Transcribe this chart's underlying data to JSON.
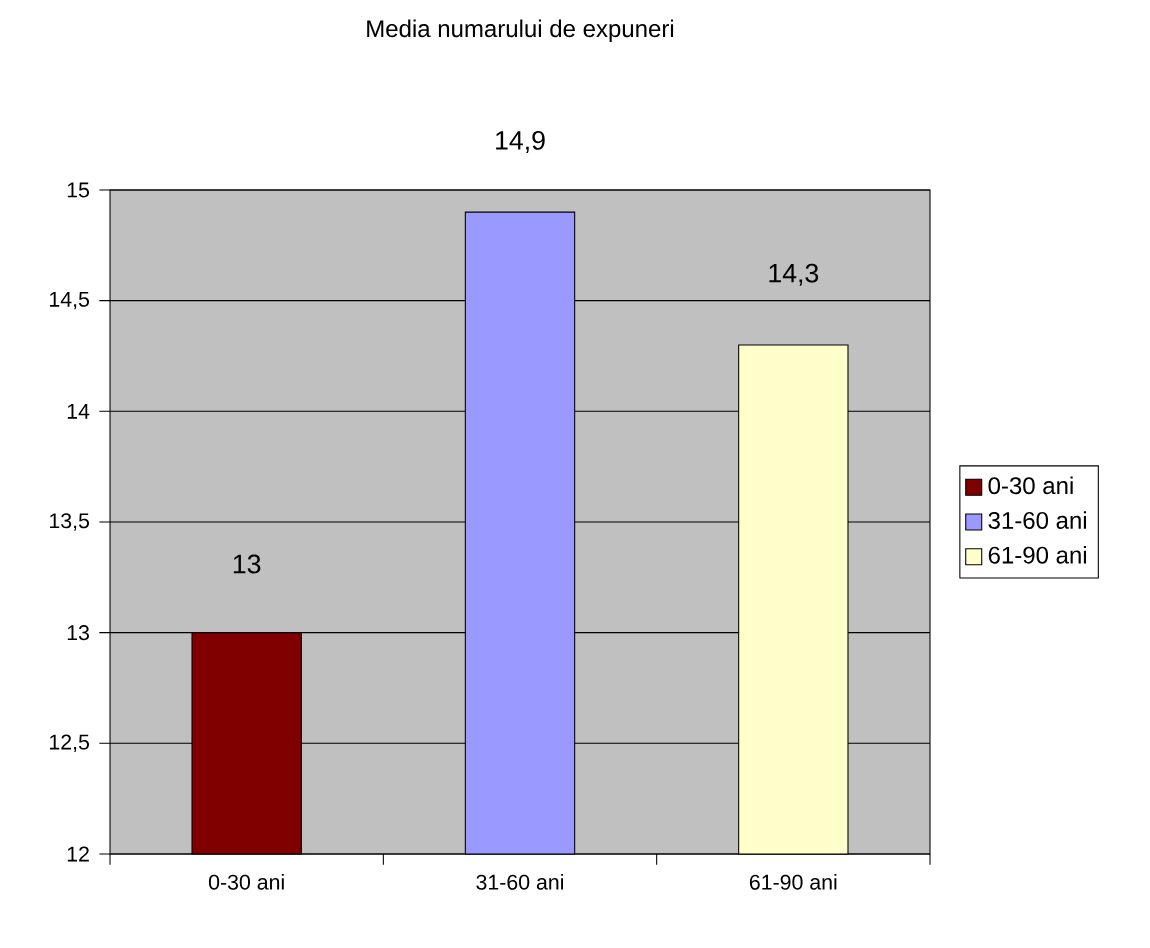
{
  "chart_data": {
    "type": "bar",
    "title": "Media numarului de expuneri",
    "categories": [
      "0-30 ani",
      "31-60 ani",
      "61-90 ani"
    ],
    "series": [
      {
        "name": "0-30 ani",
        "color": "#800000",
        "values": [
          13,
          null,
          null
        ],
        "value_labels": [
          "13",
          null,
          null
        ]
      },
      {
        "name": "31-60 ani",
        "color": "#9999ff",
        "values": [
          null,
          14.9,
          null
        ],
        "value_labels": [
          null,
          "14,9",
          null
        ]
      },
      {
        "name": "61-90 ani",
        "color": "#ffffcc",
        "values": [
          null,
          null,
          14.3
        ],
        "value_labels": [
          null,
          null,
          "14,3"
        ]
      }
    ],
    "ylim": [
      12,
      15
    ],
    "yticks": [
      12,
      {
        "value": 12.5,
        "label": "12,5"
      },
      13,
      {
        "value": 13.5,
        "label": "13,5"
      },
      14,
      {
        "value": 14.5,
        "label": "14,5"
      },
      15
    ],
    "grid": "y",
    "legend": "right"
  }
}
